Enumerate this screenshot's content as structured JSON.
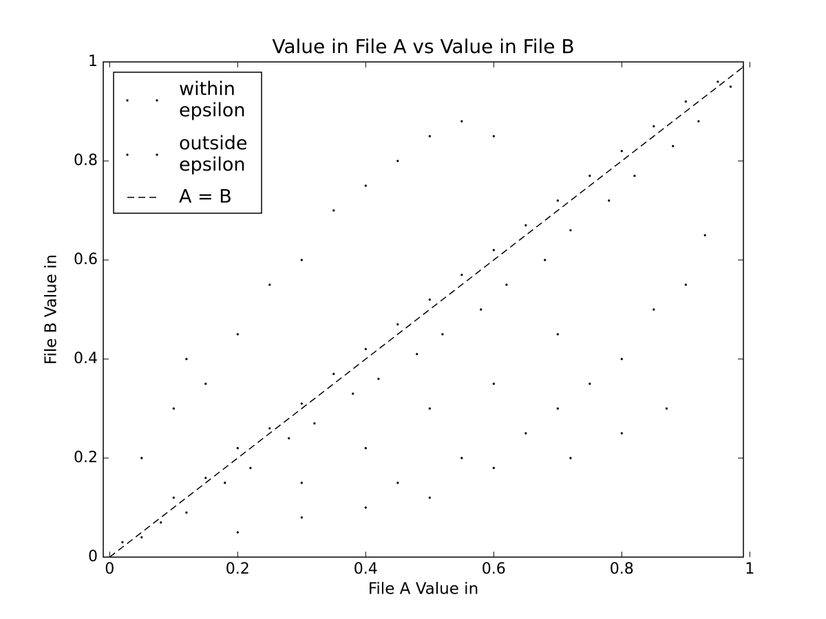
{
  "chart_data": {
    "type": "scatter",
    "title": "Value in File A vs Value in File B",
    "x_label": "File A Value in",
    "y_label": "File B Value in",
    "xlim": [
      -0.01,
      0.99
    ],
    "ylim": [
      0,
      1
    ],
    "xticks": [
      0,
      0.2,
      0.4,
      0.6,
      0.8,
      1
    ],
    "yticks": [
      0,
      0.2,
      0.4,
      0.6,
      0.8,
      1
    ],
    "grid": false,
    "legend": "upper left",
    "series": [
      {
        "name": "within\nepsilon",
        "color": "#000000",
        "x": [
          0.02,
          0.05,
          0.08,
          0.1,
          0.12,
          0.15,
          0.18,
          0.2,
          0.22,
          0.25,
          0.28,
          0.3,
          0.32,
          0.35,
          0.38,
          0.4,
          0.42,
          0.45,
          0.48,
          0.5,
          0.52,
          0.55,
          0.58,
          0.6,
          0.62,
          0.65,
          0.68,
          0.7,
          0.72,
          0.75,
          0.78,
          0.8,
          0.82,
          0.85,
          0.88,
          0.9,
          0.92,
          0.95,
          0.97,
          0.99
        ],
        "values": [
          0.03,
          0.04,
          0.07,
          0.12,
          0.09,
          0.16,
          0.15,
          0.22,
          0.18,
          0.26,
          0.24,
          0.31,
          0.27,
          0.37,
          0.33,
          0.42,
          0.36,
          0.47,
          0.41,
          0.52,
          0.45,
          0.57,
          0.5,
          0.62,
          0.55,
          0.67,
          0.6,
          0.72,
          0.66,
          0.77,
          0.72,
          0.82,
          0.77,
          0.87,
          0.83,
          0.92,
          0.88,
          0.96,
          0.95,
          0.99
        ]
      },
      {
        "name": "outside\nepsilon",
        "color": "#000000",
        "x": [
          0.05,
          0.1,
          0.12,
          0.15,
          0.2,
          0.25,
          0.3,
          0.35,
          0.4,
          0.45,
          0.5,
          0.55,
          0.6,
          0.2,
          0.3,
          0.4,
          0.45,
          0.5,
          0.55,
          0.6,
          0.65,
          0.7,
          0.75,
          0.8,
          0.85,
          0.9,
          0.93,
          0.6,
          0.7,
          0.5,
          0.4,
          0.3,
          0.8,
          0.87,
          0.72
        ],
        "values": [
          0.2,
          0.3,
          0.4,
          0.35,
          0.45,
          0.55,
          0.6,
          0.7,
          0.75,
          0.8,
          0.85,
          0.88,
          0.85,
          0.05,
          0.08,
          0.1,
          0.15,
          0.12,
          0.2,
          0.18,
          0.25,
          0.3,
          0.35,
          0.4,
          0.5,
          0.55,
          0.65,
          0.35,
          0.45,
          0.3,
          0.22,
          0.15,
          0.25,
          0.3,
          0.2
        ]
      },
      {
        "name": "A = B",
        "color": "#000000",
        "linestyle": "dashed",
        "x": [
          0,
          1
        ],
        "values": [
          0,
          1
        ]
      }
    ]
  }
}
